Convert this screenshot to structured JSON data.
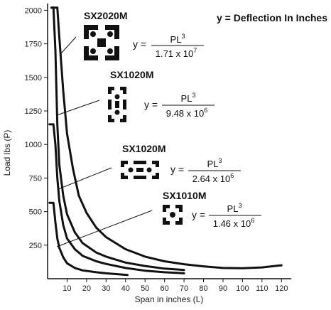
{
  "chart_data": {
    "type": "line",
    "title": "",
    "note": "y = Deflection In Inches",
    "xlabel": "Span in inches (L)",
    "ylabel": "Load lbs (P)",
    "xlim": [
      0,
      125
    ],
    "ylim": [
      0,
      2050
    ],
    "xticks": [
      10,
      20,
      30,
      40,
      50,
      60,
      70,
      80,
      90,
      100,
      110,
      120
    ],
    "yticks": [
      250,
      500,
      750,
      1000,
      1250,
      1500,
      1750,
      2000
    ],
    "grid": false,
    "series": [
      {
        "name": "SX2020M",
        "formula_numerator": "PL",
        "formula_exponent": "3",
        "formula_denominator_base": "1.71  x  10",
        "formula_denominator_exponent": "7",
        "points": [
          [
            2,
            2020
          ],
          [
            5,
            2020
          ],
          [
            6,
            1800
          ],
          [
            8,
            1400
          ],
          [
            10,
            1080
          ],
          [
            13,
            820
          ],
          [
            16,
            620
          ],
          [
            20,
            490
          ],
          [
            25,
            380
          ],
          [
            30,
            310
          ],
          [
            40,
            220
          ],
          [
            50,
            165
          ],
          [
            60,
            130
          ],
          [
            70,
            108
          ],
          [
            80,
            92
          ],
          [
            90,
            80
          ],
          [
            100,
            78
          ],
          [
            110,
            84
          ],
          [
            120,
            100
          ]
        ]
      },
      {
        "name": "SX1020M",
        "formula_numerator": "PL",
        "formula_exponent": "3",
        "formula_denominator_base": "9.48  x  10",
        "formula_denominator_exponent": "6",
        "points": [
          [
            2,
            2020
          ],
          [
            3,
            2020
          ],
          [
            4,
            1700
          ],
          [
            5,
            1150
          ],
          [
            6,
            850
          ],
          [
            8,
            620
          ],
          [
            10,
            480
          ],
          [
            14,
            345
          ],
          [
            18,
            265
          ],
          [
            25,
            195
          ],
          [
            30,
            165
          ],
          [
            40,
            120
          ],
          [
            50,
            95
          ],
          [
            60,
            75
          ],
          [
            70,
            65
          ]
        ]
      },
      {
        "name": "SX1020M",
        "formula_numerator": "PL",
        "formula_exponent": "3",
        "formula_denominator_base": "2.64  x  10",
        "formula_denominator_exponent": "6",
        "points": [
          [
            1,
            1150
          ],
          [
            3,
            1150
          ],
          [
            4,
            1000
          ],
          [
            5,
            750
          ],
          [
            6,
            580
          ],
          [
            8,
            400
          ],
          [
            10,
            300
          ],
          [
            14,
            220
          ],
          [
            18,
            170
          ],
          [
            25,
            130
          ],
          [
            30,
            110
          ],
          [
            40,
            80
          ],
          [
            50,
            60
          ],
          [
            60,
            48
          ],
          [
            70,
            40
          ]
        ]
      },
      {
        "name": "SX1010M",
        "formula_numerator": "PL",
        "formula_exponent": "3",
        "formula_denominator_base": "1.46  x  10",
        "formula_denominator_exponent": "6",
        "points": [
          [
            1,
            565
          ],
          [
            3,
            565
          ],
          [
            4,
            420
          ],
          [
            5,
            300
          ],
          [
            6,
            230
          ],
          [
            8,
            160
          ],
          [
            10,
            115
          ],
          [
            14,
            80
          ],
          [
            18,
            62
          ],
          [
            25,
            48
          ],
          [
            30,
            40
          ],
          [
            41,
            28
          ]
        ]
      }
    ]
  }
}
